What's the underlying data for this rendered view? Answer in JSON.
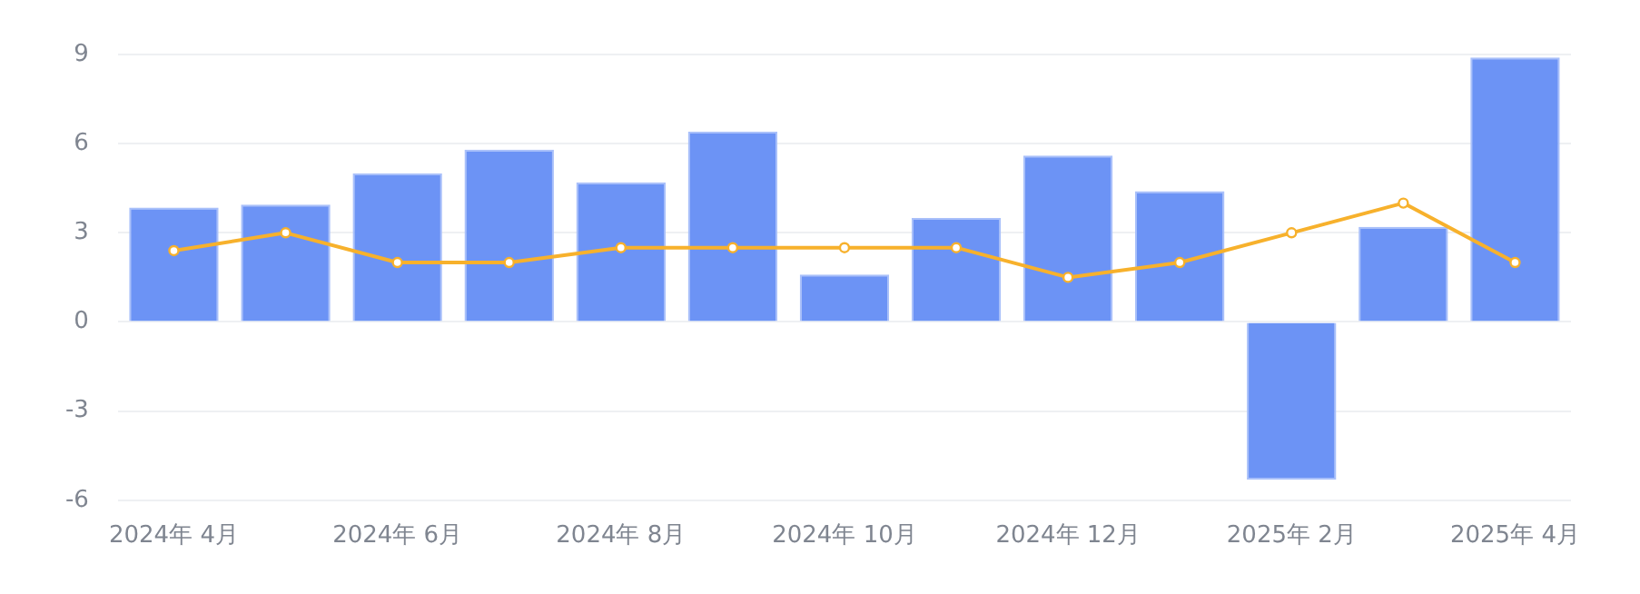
{
  "chart_data": {
    "type": "bar",
    "categories": [
      "2024年 4月",
      null,
      "2024年 6月",
      null,
      "2024年 8月",
      null,
      "2024年 10月",
      null,
      "2024年 12月",
      null,
      "2025年 2月",
      null,
      "2025年 4月"
    ],
    "series": [
      {
        "color": "#6c93f5",
        "values": [
          3.85,
          3.95,
          5.0,
          5.8,
          4.7,
          6.4,
          1.6,
          3.5,
          5.6,
          4.4,
          -5.3,
          3.2,
          8.9
        ]
      },
      {
        "type": "line",
        "color": "#f7b12c",
        "values": [
          2.4,
          3,
          2,
          2,
          2.5,
          2.5,
          2.5,
          2.5,
          1.5,
          2,
          3,
          4,
          2
        ]
      }
    ],
    "ylim": [
      -6,
      9
    ],
    "yticks": [
      -6,
      -3,
      0,
      3,
      6,
      9
    ],
    "grid": "y",
    "legend": false,
    "marker": "circle"
  }
}
